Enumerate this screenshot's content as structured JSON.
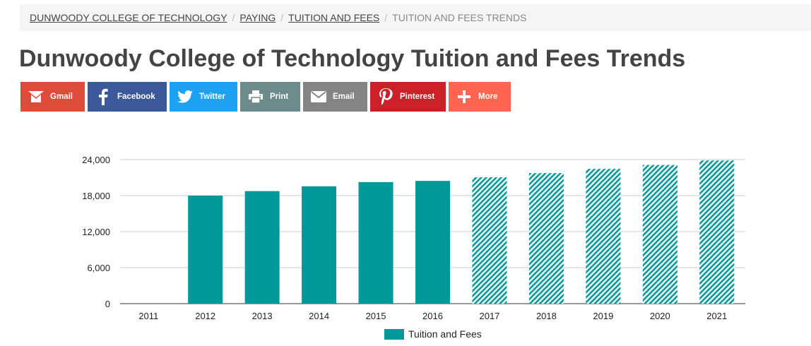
{
  "breadcrumb": {
    "items": [
      "DUNWOODY COLLEGE OF TECHNOLOGY",
      "PAYING",
      "TUITION AND FEES"
    ],
    "current": "TUITION AND FEES TRENDS"
  },
  "page_title": "Dunwoody College of Technology Tuition and Fees Trends",
  "share": [
    {
      "label": "Gmail",
      "icon": "gmail-icon",
      "color": "#dd4b39"
    },
    {
      "label": "Facebook",
      "icon": "facebook-icon",
      "color": "#3b5998"
    },
    {
      "label": "Twitter",
      "icon": "twitter-icon",
      "color": "#1da1f2"
    },
    {
      "label": "Print",
      "icon": "print-icon",
      "color": "#6d8a8a"
    },
    {
      "label": "Email",
      "icon": "email-icon",
      "color": "#848484"
    },
    {
      "label": "Pinterest",
      "icon": "pinterest-icon",
      "color": "#cb2027"
    },
    {
      "label": "More",
      "icon": "plus-icon",
      "color": "#ff6550"
    }
  ],
  "chart_data": {
    "type": "bar",
    "categories": [
      "2011",
      "2012",
      "2013",
      "2014",
      "2015",
      "2016",
      "2017",
      "2018",
      "2019",
      "2020",
      "2021"
    ],
    "series": [
      {
        "name": "Tuition and Fees",
        "values": [
          null,
          18000,
          18750,
          19550,
          20250,
          20450,
          21050,
          21750,
          22450,
          23100,
          23850
        ],
        "projected_from_index": 6
      }
    ],
    "ylim": [
      0,
      24000
    ],
    "yticks": [
      0,
      6000,
      12000,
      18000,
      24000
    ],
    "ytick_labels": [
      "0",
      "6,000",
      "12,000",
      "18,000",
      "24,000"
    ],
    "grid": true,
    "legend": "bottom",
    "color": "#009999"
  }
}
